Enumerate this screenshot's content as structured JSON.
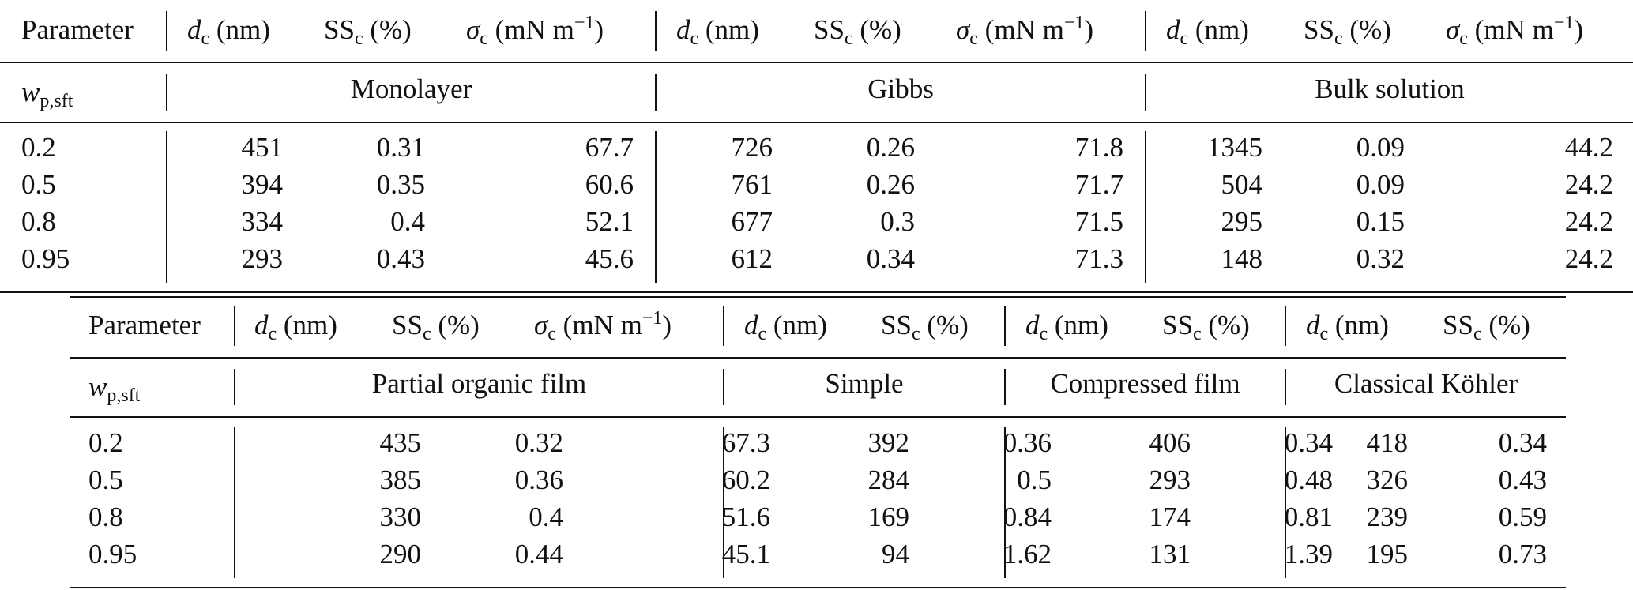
{
  "table_a": {
    "header": {
      "parameter": "Parameter",
      "d_sym": "d",
      "d_sub": "c",
      "d_unit": "(nm)",
      "ss_sym": "SS",
      "ss_sub": "c",
      "ss_unit": "(%)",
      "sigma_sym": "σ",
      "sigma_sub": "c",
      "sigma_unit": "(mN m",
      "sigma_exp": "−1",
      "sigma_close": ")"
    },
    "row_label": {
      "sym": "w",
      "sub": "p,sft"
    },
    "groups": [
      "Monolayer",
      "Gibbs",
      "Bulk solution"
    ],
    "rows": [
      [
        "0.2",
        "451",
        "0.31",
        "67.7",
        "726",
        "0.26",
        "71.8",
        "1345",
        "0.09",
        "44.2"
      ],
      [
        "0.5",
        "394",
        "0.35",
        "60.6",
        "761",
        "0.26",
        "71.7",
        "504",
        "0.09",
        "24.2"
      ],
      [
        "0.8",
        "334",
        "0.4",
        "52.1",
        "677",
        "0.3",
        "71.5",
        "295",
        "0.15",
        "24.2"
      ],
      [
        "0.95",
        "293",
        "0.43",
        "45.6",
        "612",
        "0.34",
        "71.3",
        "148",
        "0.32",
        "24.2"
      ]
    ]
  },
  "table_b": {
    "header": {
      "parameter": "Parameter",
      "d_sym": "d",
      "d_sub": "c",
      "d_unit": "(nm)",
      "ss_sym": "SS",
      "ss_sub": "c",
      "ss_unit": "(%)",
      "sigma_sym": "σ",
      "sigma_sub": "c",
      "sigma_unit": "(mN m",
      "sigma_exp": "−1",
      "sigma_close": ")"
    },
    "row_label": {
      "sym": "w",
      "sub": "p,sft"
    },
    "groups": [
      "Partial organic film",
      "Simple",
      "Compressed film",
      "Classical Köhler"
    ],
    "rows": [
      [
        "0.2",
        "435",
        "0.32",
        "67.3",
        "392",
        "0.36",
        "406",
        "0.34",
        "418",
        "0.34"
      ],
      [
        "0.5",
        "385",
        "0.36",
        "60.2",
        "284",
        "0.5",
        "293",
        "0.48",
        "326",
        "0.43"
      ],
      [
        "0.8",
        "330",
        "0.4",
        "51.6",
        "169",
        "0.84",
        "174",
        "0.81",
        "239",
        "0.59"
      ],
      [
        "0.95",
        "290",
        "0.44",
        "45.1",
        "94",
        "1.62",
        "131",
        "1.39",
        "195",
        "0.73"
      ]
    ]
  }
}
